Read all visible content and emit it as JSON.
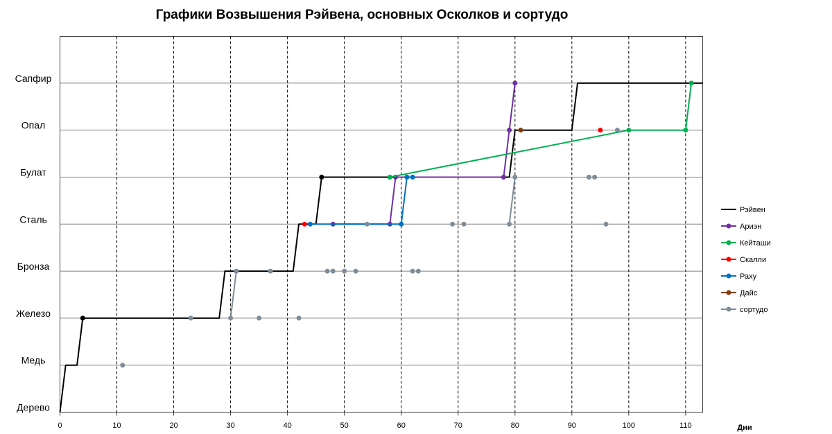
{
  "chart_data": {
    "type": "line",
    "title": "Графики Возвышения Рэйвена, основных Осколков и сортудо",
    "xlabel": "Дни",
    "ylabel": "",
    "xlim": [
      0,
      113
    ],
    "ylim": [
      0,
      7.5
    ],
    "xticks": [
      0,
      10,
      20,
      30,
      40,
      50,
      60,
      70,
      80,
      90,
      100,
      110
    ],
    "ytick_labels": [
      "Дерево",
      "Медь",
      "Железо",
      "Бронза",
      "Сталь",
      "Булат",
      "Опал",
      "Сапфир"
    ],
    "grid": {
      "x": "dashed",
      "y": "solid"
    },
    "legend_position": "right",
    "series": [
      {
        "name": "Рэйвен",
        "color": "#000000",
        "line": true,
        "markers": [
          3
        ],
        "points": [
          [
            0,
            0
          ],
          [
            1,
            1
          ],
          [
            3,
            1
          ],
          [
            4,
            2
          ],
          [
            28,
            2
          ],
          [
            29,
            3
          ],
          [
            41,
            3
          ],
          [
            42,
            4
          ],
          [
            45,
            4
          ],
          [
            46,
            5
          ],
          [
            79,
            5
          ],
          [
            80,
            6
          ],
          [
            90,
            6
          ],
          [
            91,
            7
          ],
          [
            113,
            7
          ]
        ]
      },
      {
        "name": "Ариэн",
        "color": "#7030a0",
        "line": true,
        "points": [
          [
            48,
            4
          ],
          [
            58,
            4
          ],
          [
            59,
            5
          ],
          [
            78,
            5
          ],
          [
            79,
            6
          ],
          [
            80,
            7
          ]
        ]
      },
      {
        "name": "Кейташи",
        "color": "#00b050",
        "line": true,
        "points": [
          [
            58,
            5
          ],
          [
            100,
            6
          ],
          [
            110,
            6
          ],
          [
            111,
            7
          ]
        ]
      },
      {
        "name": "Скалли",
        "color": "#ff0000",
        "line": false,
        "points": [
          [
            43,
            4
          ],
          [
            95,
            6
          ]
        ]
      },
      {
        "name": "Раху",
        "color": "#0070c0",
        "line": true,
        "points": [
          [
            44,
            4
          ],
          [
            60,
            4
          ],
          [
            61,
            5
          ],
          [
            62,
            5
          ]
        ]
      },
      {
        "name": "Дайс",
        "color": "#843c0c",
        "line": false,
        "points": [
          [
            81,
            6
          ]
        ]
      },
      {
        "name": "сортудо",
        "color": "#7f8c99",
        "line": false,
        "points": [
          [
            11,
            1
          ],
          [
            23,
            2
          ],
          [
            30,
            2
          ],
          [
            35,
            2
          ],
          [
            42,
            2
          ],
          [
            31,
            3
          ],
          [
            37,
            3
          ],
          [
            47,
            3
          ],
          [
            48,
            3
          ],
          [
            50,
            3
          ],
          [
            52,
            3
          ],
          [
            62,
            3
          ],
          [
            63,
            3
          ],
          [
            54,
            4
          ],
          [
            69,
            4
          ],
          [
            71,
            4
          ],
          [
            79,
            4
          ],
          [
            96,
            4
          ],
          [
            80,
            5
          ],
          [
            93,
            5
          ],
          [
            94,
            5
          ],
          [
            98,
            6
          ]
        ],
        "segments": [
          [
            [
              30,
              2
            ],
            [
              31,
              3
            ]
          ],
          [
            [
              79,
              4
            ],
            [
              80,
              5
            ]
          ]
        ]
      }
    ]
  }
}
